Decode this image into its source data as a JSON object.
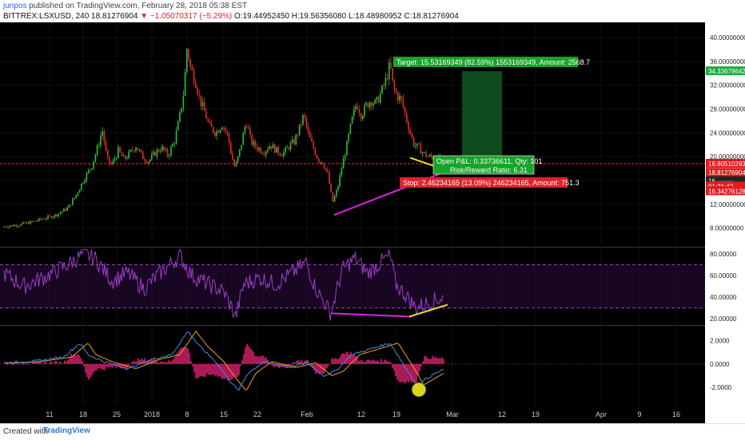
{
  "header": {
    "author": "junpos",
    "published": " published on TradingView.com, February 28, 2018 05:38 EST",
    "symbol": "BITTREX:LSXUSD, 240",
    "last": "18.81276904",
    "change": "−1.05070317 (−5.29%)",
    "open": "O:19.44952450",
    "high": "H:19.56356080",
    "low": "L:18.48980952",
    "close": "C:18.81276904"
  },
  "footer": {
    "created": "Created with",
    "brand": "TradingView"
  },
  "colors": {
    "background": "#000000",
    "up": "#2fbf3a",
    "down": "#e0302a",
    "rsi": "#9b3fc6",
    "macd": "#3a8fe8",
    "signal": "#f0a020",
    "histogram": "#d3206c",
    "divergence": "#e020e0",
    "trend": "#e8e020",
    "target_zone": "#0d4a1c"
  },
  "chart_data": [
    {
      "type": "candlestick",
      "name": "price",
      "x_ticks": [
        "11",
        "18",
        "25",
        "2018",
        "8",
        "15",
        "22",
        "Feb",
        "12",
        "19",
        "Mar",
        "12",
        "19",
        "Apr",
        "9",
        "16"
      ],
      "y_ticks": [
        "40.00000000",
        "36.00000000",
        "32.00000000",
        "28.00000000",
        "24.00000000",
        "20.00000000",
        "16.00000000",
        "12.00000000",
        "8.00000000"
      ],
      "ylim": [
        5,
        42
      ],
      "close_path": [
        [
          0,
          8.2
        ],
        [
          20,
          8.5
        ],
        [
          40,
          9.0
        ],
        [
          55,
          9.6
        ],
        [
          70,
          10.2
        ],
        [
          85,
          11.4
        ],
        [
          95,
          13.5
        ],
        [
          105,
          16.2
        ],
        [
          115,
          18.5
        ],
        [
          122,
          21.5
        ],
        [
          128,
          24.5
        ],
        [
          134,
          19.5
        ],
        [
          140,
          18.6
        ],
        [
          148,
          21.0
        ],
        [
          155,
          19.5
        ],
        [
          162,
          20.5
        ],
        [
          170,
          21.8
        ],
        [
          178,
          20.0
        ],
        [
          186,
          19.2
        ],
        [
          194,
          20.6
        ],
        [
          202,
          21.5
        ],
        [
          210,
          20.2
        ],
        [
          218,
          22.5
        ],
        [
          224,
          26.0
        ],
        [
          230,
          31.0
        ],
        [
          234,
          38.5
        ],
        [
          238,
          35.0
        ],
        [
          244,
          33.0
        ],
        [
          250,
          29.5
        ],
        [
          256,
          27.5
        ],
        [
          262,
          25.0
        ],
        [
          270,
          24.0
        ],
        [
          278,
          25.5
        ],
        [
          285,
          23.5
        ],
        [
          290,
          20.0
        ],
        [
          294,
          18.0
        ],
        [
          300,
          21.0
        ],
        [
          308,
          26.0
        ],
        [
          314,
          22.5
        ],
        [
          322,
          21.5
        ],
        [
          330,
          20.8
        ],
        [
          338,
          22.0
        ],
        [
          346,
          21.0
        ],
        [
          354,
          20.5
        ],
        [
          362,
          21.8
        ],
        [
          368,
          22.5
        ],
        [
          374,
          24.5
        ],
        [
          380,
          27.0
        ],
        [
          386,
          23.5
        ],
        [
          392,
          21.5
        ],
        [
          398,
          19.5
        ],
        [
          404,
          19.0
        ],
        [
          410,
          17.0
        ],
        [
          416,
          12.3
        ],
        [
          422,
          14.5
        ],
        [
          428,
          18.5
        ],
        [
          434,
          22.0
        ],
        [
          440,
          26.0
        ],
        [
          446,
          29.0
        ],
        [
          452,
          27.0
        ],
        [
          458,
          28.5
        ],
        [
          464,
          29.5
        ],
        [
          470,
          28.8
        ],
        [
          476,
          30.5
        ],
        [
          482,
          32.5
        ],
        [
          488,
          35.5
        ],
        [
          492,
          31.5
        ],
        [
          497,
          30.2
        ],
        [
          502,
          29.5
        ],
        [
          507,
          27.0
        ],
        [
          512,
          24.5
        ],
        [
          518,
          22.0
        ],
        [
          524,
          21.5
        ],
        [
          530,
          20.5
        ],
        [
          536,
          20.0
        ],
        [
          542,
          19.8
        ],
        [
          548,
          19.6
        ],
        [
          555,
          18.81
        ]
      ],
      "levels": [
        {
          "label": "34.33679642",
          "value": 34.34,
          "color": "#1faa3a"
        },
        {
          "label": "18.80510293",
          "value": 18.81,
          "color": "#e01c1c"
        },
        {
          "label": "18.81276904",
          "value": 17.3,
          "color": "#e01c1c"
        },
        {
          "label": "16.········",
          "value": 15.9,
          "color": "#222222"
        },
        {
          "label": "01:21:42",
          "value": 15.9,
          "color": "#e01c1c"
        },
        {
          "label": "16.34276128",
          "value": 14.5,
          "color": "#e01c1c"
        }
      ],
      "annotations": {
        "target": "Target: 15.53169349 (82.59%) 1553169349, Amount: 2568.7",
        "open_pl": "Open P&L: 0.33736611, Qty: 101",
        "rr": "Risk/Reward Ratio: 6.31",
        "stop": "Stop: 2.46234165 (13.09%) 246234165, Amount: 751.3"
      }
    },
    {
      "type": "line",
      "name": "rsi",
      "y_ticks": [
        "80.00000",
        "60.00000",
        "40.00000",
        "20.00000"
      ],
      "ylim": [
        15,
        85
      ],
      "bands": [
        70,
        30
      ]
    },
    {
      "type": "line",
      "name": "macd",
      "y_ticks": [
        "2.0000",
        "0.0000",
        "-2.0000"
      ],
      "ylim": [
        -3.5,
        3.2
      ]
    }
  ]
}
